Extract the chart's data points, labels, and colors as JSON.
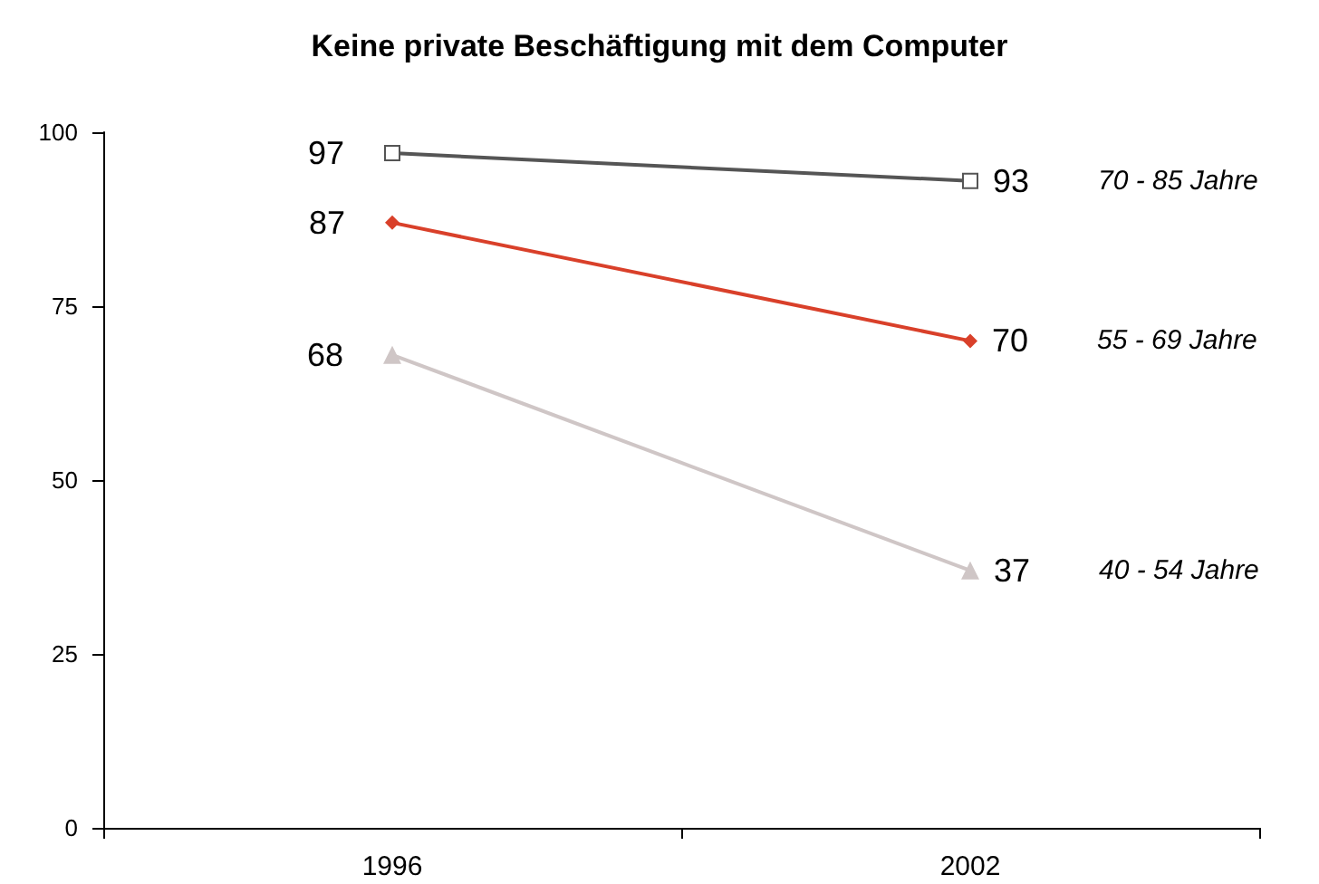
{
  "chart_data": {
    "type": "line",
    "title": "Keine private Beschäftigung mit dem Computer",
    "categories": [
      "1996",
      "2002"
    ],
    "series": [
      {
        "name": "70 - 85 Jahre",
        "color": "#555555",
        "marker": "square",
        "values": [
          97,
          93
        ]
      },
      {
        "name": "55 - 69 Jahre",
        "color": "#d9402a",
        "marker": "diamond",
        "values": [
          87,
          70
        ]
      },
      {
        "name": "40 - 54 Jahre",
        "color": "#cfc6c6",
        "marker": "triangle",
        "values": [
          68,
          37
        ]
      }
    ],
    "ylim": [
      0,
      100
    ],
    "yticks": [
      0,
      25,
      50,
      75,
      100
    ],
    "grid": false,
    "legend": false,
    "data_labels": true
  }
}
